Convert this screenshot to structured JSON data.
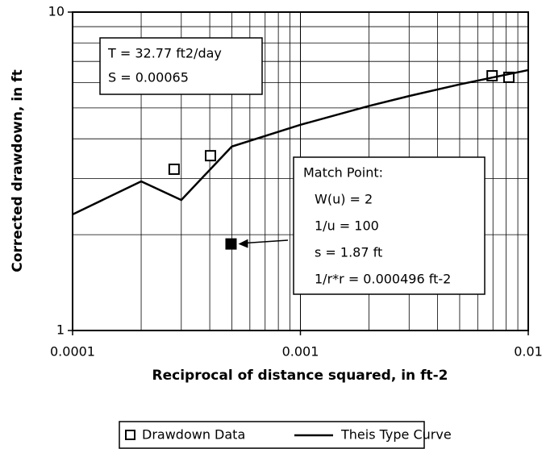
{
  "chart_data": {
    "type": "scatter",
    "xlabel": "Reciprocal of distance squared, in ft-2",
    "ylabel": "Corrected drawdown, in ft",
    "xlog": true,
    "ylog": true,
    "grid": true,
    "xlim": [
      0.0001,
      0.01
    ],
    "ylim": [
      1,
      10
    ],
    "xticks": [
      0.0001,
      0.001,
      0.01
    ],
    "yticks": [
      1,
      10
    ],
    "legend": "bottom",
    "series": [
      {
        "name": "Drawdown Data",
        "style": "marker",
        "color": "#000000",
        "x": [
          0.000279,
          0.000403,
          0.00694,
          0.00822
        ],
        "values": [
          3.21,
          3.54,
          6.31,
          6.24
        ]
      },
      {
        "name": "Theis Type Curve",
        "style": "line",
        "color": "#000000",
        "x": [
          0.0001,
          0.0002,
          0.0003,
          0.0005,
          0.001,
          0.002,
          0.003,
          0.005,
          0.01
        ],
        "values": [
          2.315,
          2.94,
          2.57,
          3.783,
          4.426,
          5.072,
          5.45,
          5.928,
          6.575
        ]
      }
    ],
    "match_point": {
      "x": 0.000496,
      "y": 1.87
    },
    "annotations": [
      [
        "T = 32.77 ft2/day",
        "S = 0.00065"
      ],
      [
        "Match Point:",
        "W(u) = 2",
        "1/u = 100",
        "s = 1.87 ft",
        "1/r*r = 0.000496 ft-2"
      ]
    ]
  }
}
